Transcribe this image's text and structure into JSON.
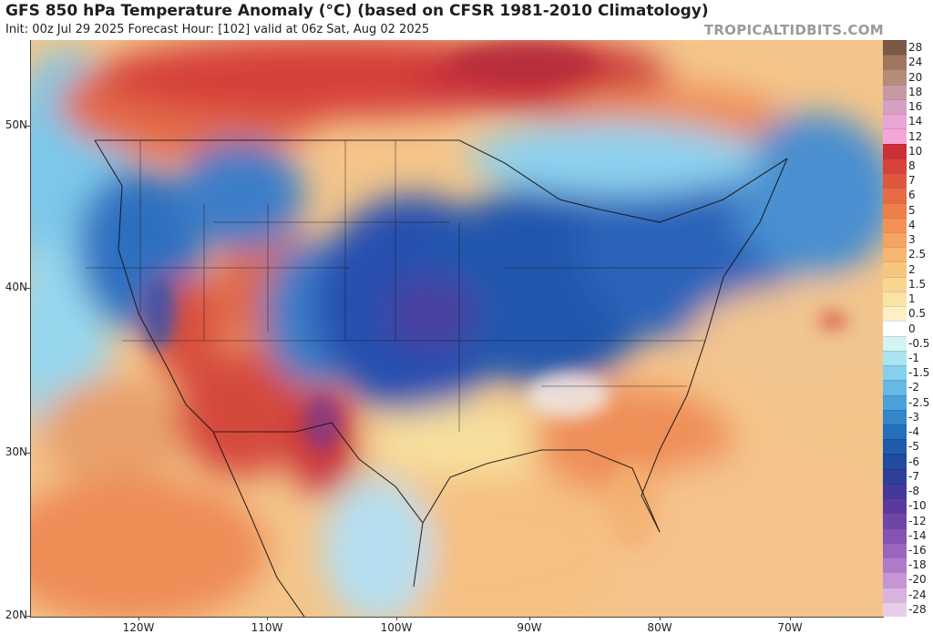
{
  "header": {
    "title": "GFS 850 hPa Temperature Anomaly (°C) (based on CFSR 1981-2010 Climatology)",
    "info": "Init: 00z Jul 29 2025   Forecast Hour: [102]   valid at 06z Sat, Aug 02 2025",
    "credit": "TROPICALTIDBITS.COM"
  },
  "map": {
    "latitude_labels": [
      "50N",
      "40N",
      "30N",
      "20N"
    ],
    "longitude_labels": [
      "120W",
      "110W",
      "100W",
      "90W",
      "80W",
      "70W"
    ]
  },
  "colorbar": {
    "labels": [
      "28",
      "24",
      "20",
      "18",
      "16",
      "14",
      "12",
      "10",
      "8",
      "7",
      "6",
      "5",
      "4",
      "3",
      "2.5",
      "2",
      "1.5",
      "1",
      "0.5",
      "0",
      "-0.5",
      "-1",
      "-1.5",
      "-2",
      "-2.5",
      "-3",
      "-4",
      "-5",
      "-6",
      "-7",
      "-8",
      "-10",
      "-12",
      "-14",
      "-16",
      "-18",
      "-20",
      "-24",
      "-28"
    ],
    "colors": [
      "#7b5a45",
      "#a0765f",
      "#b78a7a",
      "#c79aa2",
      "#d6a0c2",
      "#e7a6d4",
      "#f4a7d6",
      "#cc2f3a",
      "#d8423c",
      "#e0573f",
      "#e86a45",
      "#ef7e4b",
      "#f39155",
      "#f5a463",
      "#f7b570",
      "#f8c57f",
      "#f9d590",
      "#fbe3a4",
      "#fdf0c4",
      "#ffffff",
      "#d5f3f3",
      "#a9e4ef",
      "#86d0ec",
      "#66b9e4",
      "#4ba0d8",
      "#3387c9",
      "#2470bd",
      "#1f5cad",
      "#204b9e",
      "#2e3f98",
      "#44399a",
      "#5a3a9e",
      "#6f45a8",
      "#8553b3",
      "#9a64bf",
      "#b07acb",
      "#c595d6",
      "#d8b2e0",
      "#e8cde9"
    ]
  }
}
